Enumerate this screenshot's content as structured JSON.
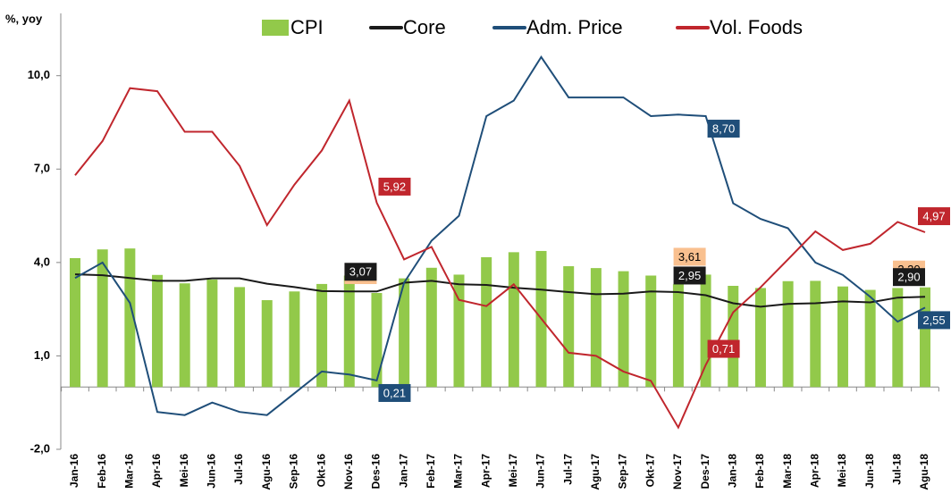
{
  "chart_data": {
    "type": "bar-line",
    "y_axis_label": "%, yoy",
    "categories": [
      "Jan-16",
      "Feb-16",
      "Mar-16",
      "Apr-16",
      "Mei-16",
      "Jun-16",
      "Jul-16",
      "Agu-16",
      "Sep-16",
      "Okt-16",
      "Nov-16",
      "Des-16",
      "Jan-17",
      "Feb-17",
      "Mar-17",
      "Apr-17",
      "Mei-17",
      "Jun-17",
      "Jul-17",
      "Agu-17",
      "Sep-17",
      "Okt-17",
      "Nov-17",
      "Des-17",
      "Jan-18",
      "Feb-18",
      "Mar-18",
      "Apr-18",
      "Mei-18",
      "Jun-18",
      "Jul-18",
      "Agu-18"
    ],
    "ylim": [
      -2,
      12
    ],
    "yticks": [
      {
        "value": -2,
        "label": "-2,0"
      },
      {
        "value": 1,
        "label": "1,0"
      },
      {
        "value": 4,
        "label": "4,0"
      },
      {
        "value": 7,
        "label": "7,0"
      },
      {
        "value": 10,
        "label": "10,0"
      }
    ],
    "series": [
      {
        "name": "CPI",
        "type": "bar",
        "color": "#92c94a",
        "label_color": "#f9c08f",
        "label_text_color": "#000000",
        "values": [
          4.14,
          4.42,
          4.45,
          3.6,
          3.33,
          3.45,
          3.21,
          2.79,
          3.07,
          3.31,
          3.58,
          3.02,
          3.49,
          3.83,
          3.61,
          4.17,
          4.33,
          4.37,
          3.88,
          3.82,
          3.72,
          3.58,
          3.3,
          3.61,
          3.25,
          3.18,
          3.4,
          3.41,
          3.23,
          3.12,
          3.18,
          3.2
        ],
        "value_labels": [
          null,
          null,
          null,
          null,
          null,
          null,
          null,
          null,
          null,
          null,
          null,
          "3,02",
          null,
          null,
          null,
          null,
          null,
          null,
          null,
          null,
          null,
          null,
          null,
          "3,61",
          null,
          null,
          null,
          null,
          null,
          null,
          null,
          "3,20"
        ]
      },
      {
        "name": "Core",
        "type": "line",
        "color": "#1a1a1a",
        "label_color": "#1a1a1a",
        "label_text_color": "#ffffff",
        "values": [
          3.62,
          3.59,
          3.5,
          3.41,
          3.41,
          3.49,
          3.49,
          3.32,
          3.21,
          3.08,
          3.07,
          3.07,
          3.35,
          3.41,
          3.3,
          3.28,
          3.19,
          3.13,
          3.05,
          2.98,
          3.0,
          3.07,
          3.05,
          2.95,
          2.69,
          2.58,
          2.67,
          2.69,
          2.75,
          2.72,
          2.87,
          2.9
        ],
        "value_labels": [
          null,
          null,
          null,
          null,
          null,
          null,
          null,
          null,
          null,
          null,
          null,
          "3,07",
          null,
          null,
          null,
          null,
          null,
          null,
          null,
          null,
          null,
          null,
          null,
          "2,95",
          null,
          null,
          null,
          null,
          null,
          null,
          null,
          "2,90"
        ]
      },
      {
        "name": "Adm. Price",
        "type": "line",
        "color": "#1f4e79",
        "label_color": "#1f4e79",
        "label_text_color": "#ffffff",
        "values": [
          3.5,
          4.0,
          2.7,
          -0.8,
          -0.9,
          -0.5,
          -0.8,
          -0.9,
          -0.2,
          0.5,
          0.4,
          0.21,
          3.35,
          4.7,
          5.5,
          8.7,
          9.2,
          10.6,
          9.3,
          9.3,
          9.3,
          8.7,
          8.75,
          8.7,
          5.9,
          5.4,
          5.1,
          4.0,
          3.6,
          2.9,
          2.1,
          2.55
        ],
        "value_labels": [
          null,
          null,
          null,
          null,
          null,
          null,
          null,
          null,
          null,
          null,
          null,
          "0,21",
          null,
          null,
          null,
          null,
          null,
          null,
          null,
          null,
          null,
          null,
          null,
          "8,70",
          null,
          null,
          null,
          null,
          null,
          null,
          null,
          "2,55"
        ]
      },
      {
        "name": "Vol. Foods",
        "type": "line",
        "color": "#c0262d",
        "label_color": "#c0262d",
        "label_text_color": "#ffffff",
        "values": [
          6.8,
          7.9,
          9.6,
          9.5,
          8.2,
          8.2,
          7.1,
          5.2,
          6.5,
          7.6,
          9.2,
          5.92,
          4.1,
          4.5,
          2.8,
          2.6,
          3.3,
          2.2,
          1.1,
          1.0,
          0.5,
          0.2,
          -1.3,
          0.71,
          2.4,
          3.2,
          4.1,
          5.0,
          4.4,
          4.6,
          5.3,
          4.97
        ],
        "value_labels": [
          null,
          null,
          null,
          null,
          null,
          null,
          null,
          null,
          null,
          null,
          null,
          "5,92",
          null,
          null,
          null,
          null,
          null,
          null,
          null,
          null,
          null,
          null,
          null,
          "0,71",
          null,
          null,
          null,
          null,
          null,
          null,
          null,
          "4,97"
        ]
      }
    ]
  }
}
